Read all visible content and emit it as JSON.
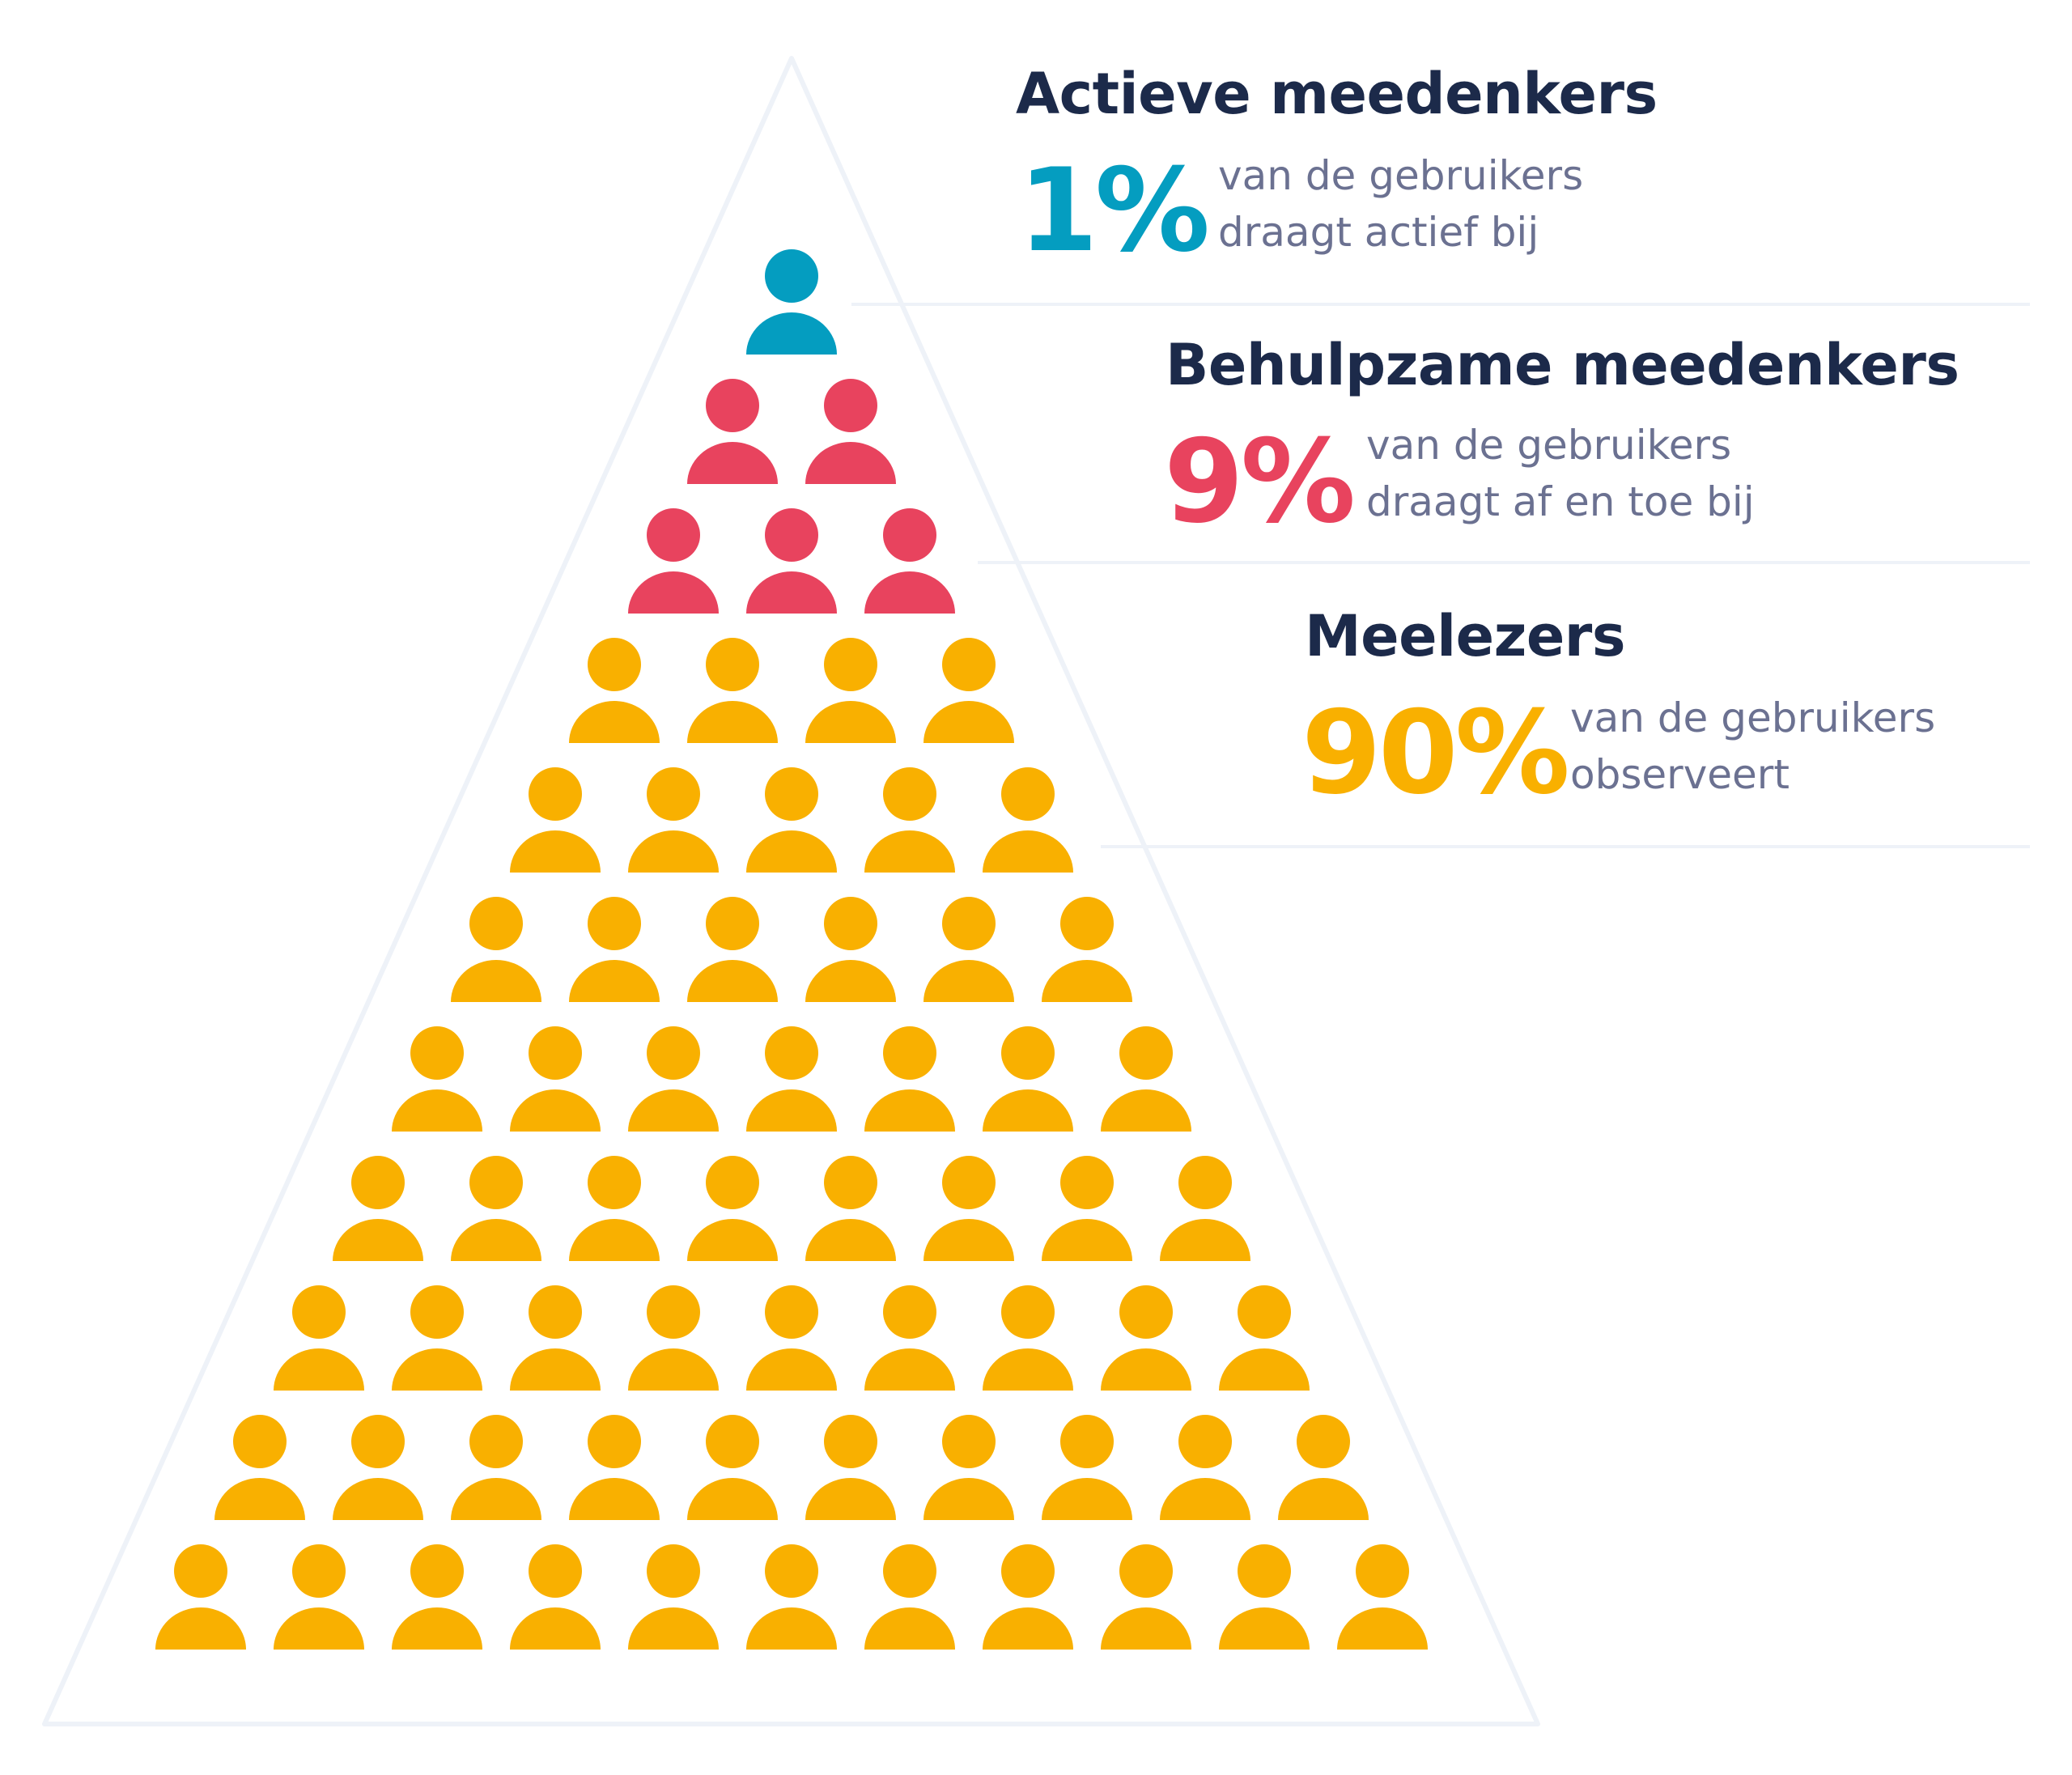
{
  "colors": {
    "outline": "#eef2f8",
    "title": "#1c2a4a",
    "description": "#6b7191"
  },
  "icon": "person-icon",
  "tiers": [
    {
      "title": "Actieve meedenkers",
      "percent": "1%",
      "description_line1": "van de gebruikers",
      "description_line2": "draagt actief bij",
      "color": "#049dc0",
      "rows": [
        1
      ]
    },
    {
      "title": "Behulpzame meedenkers",
      "percent": "9%",
      "description_line1": "van de gebruikers",
      "description_line2": "draagt af en toe bij",
      "color": "#e8435e",
      "rows": [
        2,
        3
      ]
    },
    {
      "title": "Meelezers",
      "percent": "90%",
      "description_line1": "van de gebruikers",
      "description_line2": "observeert",
      "color": "#f9b000",
      "rows": [
        4,
        5,
        6,
        7,
        8,
        9,
        10,
        11
      ]
    }
  ]
}
